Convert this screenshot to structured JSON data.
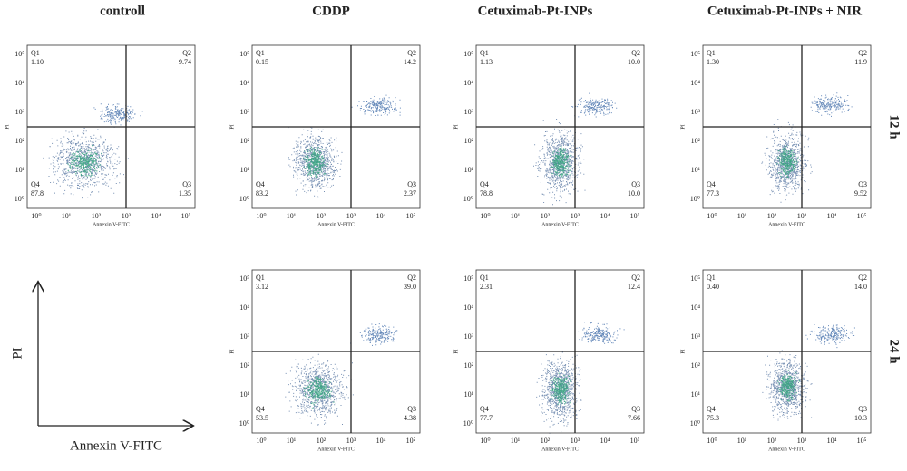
{
  "columns": [
    "controll",
    "CDDP",
    "Cetuximab-Pt-INPs",
    "Cetuximab-Pt-INPs + NIR"
  ],
  "rows": [
    "12 h",
    "24 h"
  ],
  "axis_labels": {
    "x": "Annexin V-FITC",
    "y": "PI"
  },
  "axis_ticks": [
    "10⁰",
    "10¹",
    "10²",
    "10³",
    "10⁴",
    "10⁵"
  ],
  "quadrant_names": [
    "Q1",
    "Q2",
    "Q3",
    "Q4"
  ],
  "panels": [
    {
      "row": 0,
      "col": 0,
      "quadrants": [
        "1.10",
        "9.74",
        "1.35",
        "87.8"
      ]
    },
    {
      "row": 0,
      "col": 1,
      "quadrants": [
        "0.15",
        "14.2",
        "2.37",
        "83.2"
      ]
    },
    {
      "row": 0,
      "col": 2,
      "quadrants": [
        "1.13",
        "10.0",
        "10.0",
        "78.8"
      ]
    },
    {
      "row": 0,
      "col": 3,
      "quadrants": [
        "1.30",
        "11.9",
        "9.52",
        "77.3"
      ]
    },
    {
      "row": 1,
      "col": 1,
      "quadrants": [
        "3.12",
        "39.0",
        "4.38",
        "53.5"
      ]
    },
    {
      "row": 1,
      "col": 2,
      "quadrants": [
        "2.31",
        "12.4",
        "7.66",
        "77.7"
      ]
    },
    {
      "row": 1,
      "col": 3,
      "quadrants": [
        "0.40",
        "14.0",
        "10.3",
        "75.3"
      ]
    }
  ],
  "legend": {
    "x": "Annexin V-FITC",
    "y": "PI"
  }
}
